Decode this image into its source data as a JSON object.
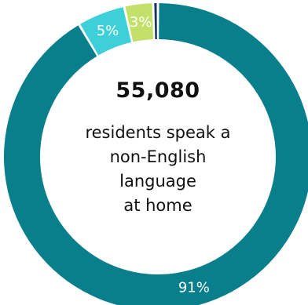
{
  "chart_data": {
    "type": "pie",
    "title": "",
    "center_value": "55,080",
    "center_caption": [
      "residents speak a",
      "non-English",
      "language",
      "at home"
    ],
    "slices": [
      {
        "label": "91%",
        "value": 91,
        "color": "#0a7f8c"
      },
      {
        "label": "5%",
        "value": 5,
        "color": "#3dd0d8"
      },
      {
        "label": "3%",
        "value": 3,
        "color": "#c2e06a"
      },
      {
        "label": "",
        "value": 0.5,
        "color": "#17335c"
      }
    ]
  }
}
